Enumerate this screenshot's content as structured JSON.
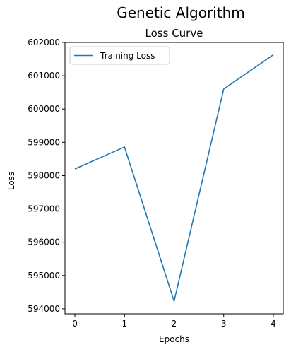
{
  "figure": {
    "suptitle": "Genetic Algorithm"
  },
  "chart_data": {
    "type": "line",
    "title": "Loss Curve",
    "xlabel": "Epochs",
    "ylabel": "Loss",
    "x": [
      0,
      1,
      2,
      3,
      4
    ],
    "xticks": [
      "0",
      "1",
      "2",
      "3",
      "4"
    ],
    "yticks": [
      "594000",
      "595000",
      "596000",
      "597000",
      "598000",
      "599000",
      "600000",
      "601000",
      "602000"
    ],
    "ylim": [
      593850,
      602000
    ],
    "xlim": [
      -0.2,
      4.2
    ],
    "grid": false,
    "legend_position": "upper-left",
    "series": [
      {
        "name": "Training Loss",
        "color": "#1f77b4",
        "values": [
          598200,
          598860,
          594230,
          600600,
          601630
        ]
      }
    ]
  }
}
